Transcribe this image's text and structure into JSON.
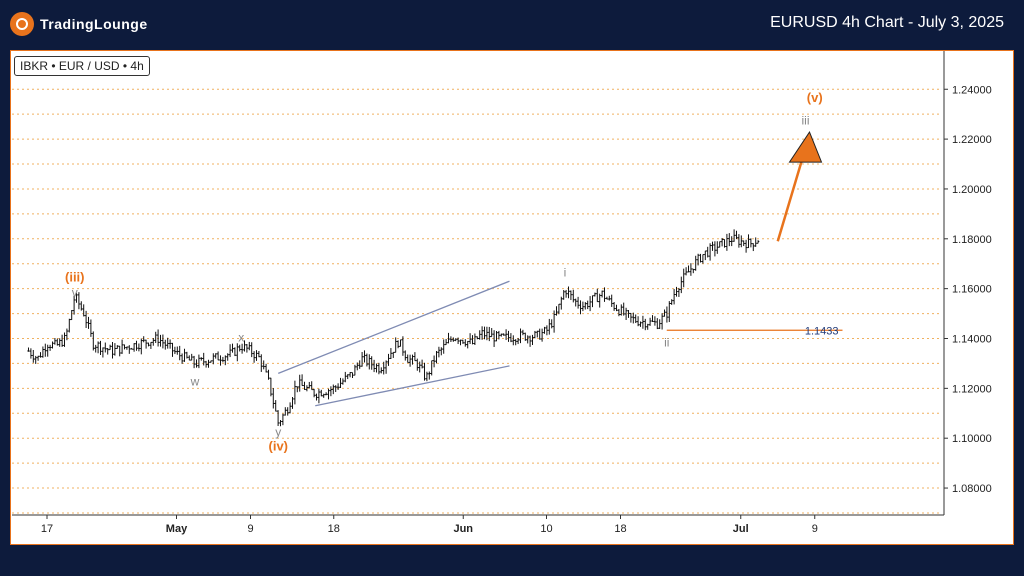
{
  "header": {
    "logo_text": "TradingLounge",
    "title": "EURUSD 4h Chart - July 3, 2025"
  },
  "symbol_label": "IBKR • EUR / USD • 4h",
  "colors": {
    "background": "#0d1b3c",
    "accent": "#e8731c",
    "candle": "#111111",
    "channel": "#7f8bb3",
    "label_gray": "#888888",
    "gridline": "#f0b060"
  },
  "chart_data": {
    "type": "candlestick",
    "title": "EURUSD 4h Chart - July 3, 2025",
    "ylim": [
      1.066,
      1.252
    ],
    "y_ticks": [
      "1.08000",
      "1.10000",
      "1.12000",
      "1.14000",
      "1.16000",
      "1.18000",
      "1.20000",
      "1.22000",
      "1.24000"
    ],
    "x_ticks": [
      "17",
      "May",
      "9",
      "18",
      "Jun",
      "10",
      "18",
      "Jul",
      "9"
    ],
    "price_path": [
      [
        "Apr 15",
        1.135
      ],
      [
        "Apr 16",
        1.132
      ],
      [
        "Apr 17",
        1.138
      ],
      [
        "Apr 18",
        1.137
      ],
      [
        "Apr 19",
        1.14
      ],
      [
        "Apr 20",
        1.157
      ],
      [
        "Apr 21",
        1.15
      ],
      [
        "Apr 22",
        1.138
      ],
      [
        "Apr 24",
        1.135
      ],
      [
        "Apr 26",
        1.137
      ],
      [
        "Apr 29",
        1.14
      ],
      [
        "May 1",
        1.134
      ],
      [
        "May 3",
        1.13
      ],
      [
        "May 5",
        1.132
      ],
      [
        "May 7",
        1.134
      ],
      [
        "May 8",
        1.137
      ],
      [
        "May 9",
        1.135
      ],
      [
        "May 10",
        1.132
      ],
      [
        "May 11",
        1.122
      ],
      [
        "May 12",
        1.106
      ],
      [
        "May 13",
        1.112
      ],
      [
        "May 14",
        1.122
      ],
      [
        "May 15",
        1.12
      ],
      [
        "May 16",
        1.118
      ],
      [
        "May 18",
        1.12
      ],
      [
        "May 20",
        1.126
      ],
      [
        "May 21",
        1.132
      ],
      [
        "May 23",
        1.128
      ],
      [
        "May 25",
        1.139
      ],
      [
        "May 26",
        1.132
      ],
      [
        "May 27",
        1.13
      ],
      [
        "May 28",
        1.124
      ],
      [
        "May 29",
        1.133
      ],
      [
        "May 31",
        1.141
      ],
      [
        "Jun 2",
        1.138
      ],
      [
        "Jun 3",
        1.142
      ],
      [
        "Jun 5",
        1.14
      ],
      [
        "Jun 7",
        1.141
      ],
      [
        "Jun 9",
        1.141
      ],
      [
        "Jun 10",
        1.143
      ],
      [
        "Jun 11",
        1.149
      ],
      [
        "Jun 12",
        1.16
      ],
      [
        "Jun 13",
        1.155
      ],
      [
        "Jun 14",
        1.153
      ],
      [
        "Jun 16",
        1.158
      ],
      [
        "Jun 17",
        1.154
      ],
      [
        "Jun 18",
        1.151
      ],
      [
        "Jun 19",
        1.148
      ],
      [
        "Jun 20",
        1.147
      ],
      [
        "Jun 22",
        1.146
      ],
      [
        "Jun 23",
        1.15
      ],
      [
        "Jun 24",
        1.16
      ],
      [
        "Jun 25",
        1.165
      ],
      [
        "Jun 26",
        1.17
      ],
      [
        "Jun 27",
        1.174
      ],
      [
        "Jun 28",
        1.176
      ],
      [
        "Jun 29",
        1.178
      ],
      [
        "Jun 30",
        1.18
      ],
      [
        "Jul 1",
        1.179
      ],
      [
        "Jul 2",
        1.178
      ],
      [
        "Jul 3",
        1.18
      ]
    ],
    "level_line": {
      "value": 1.1433,
      "label": "1.1433",
      "from": "Jun 23",
      "to": "Jul 12"
    },
    "projection_arrow": {
      "from": [
        "Jul 5",
        1.179
      ],
      "to": [
        "Jul 8",
        1.222
      ]
    },
    "channel_lines": [
      {
        "from": [
          "May 12",
          1.126
        ],
        "to": [
          "Jun 6",
          1.163
        ]
      },
      {
        "from": [
          "May 16",
          1.113
        ],
        "to": [
          "Jun 6",
          1.129
        ]
      }
    ],
    "wave_labels": [
      {
        "text": "(iii)",
        "date": "Apr 20",
        "value": 1.1645,
        "color": "#e8731c"
      },
      {
        "text": "v",
        "date": "Apr 20",
        "value": 1.1585,
        "color": "#888888"
      },
      {
        "text": "w",
        "date": "May 3",
        "value": 1.1228,
        "color": "#888888"
      },
      {
        "text": "x",
        "date": "May 8",
        "value": 1.1405,
        "color": "#888888"
      },
      {
        "text": "y",
        "date": "May 12",
        "value": 1.1025,
        "color": "#888888"
      },
      {
        "text": "(iv)",
        "date": "May 12",
        "value": 1.0967,
        "color": "#e8731c"
      },
      {
        "text": "i",
        "date": "Jun 12",
        "value": 1.1665,
        "color": "#888888"
      },
      {
        "text": "ii",
        "date": "Jun 23",
        "value": 1.1384,
        "color": "#888888"
      },
      {
        "text": "iii",
        "date": "Jul 8",
        "value": 1.2275,
        "color": "#888888"
      },
      {
        "text": "(v)",
        "date": "Jul 9",
        "value": 1.2364,
        "color": "#e8731c"
      }
    ]
  }
}
